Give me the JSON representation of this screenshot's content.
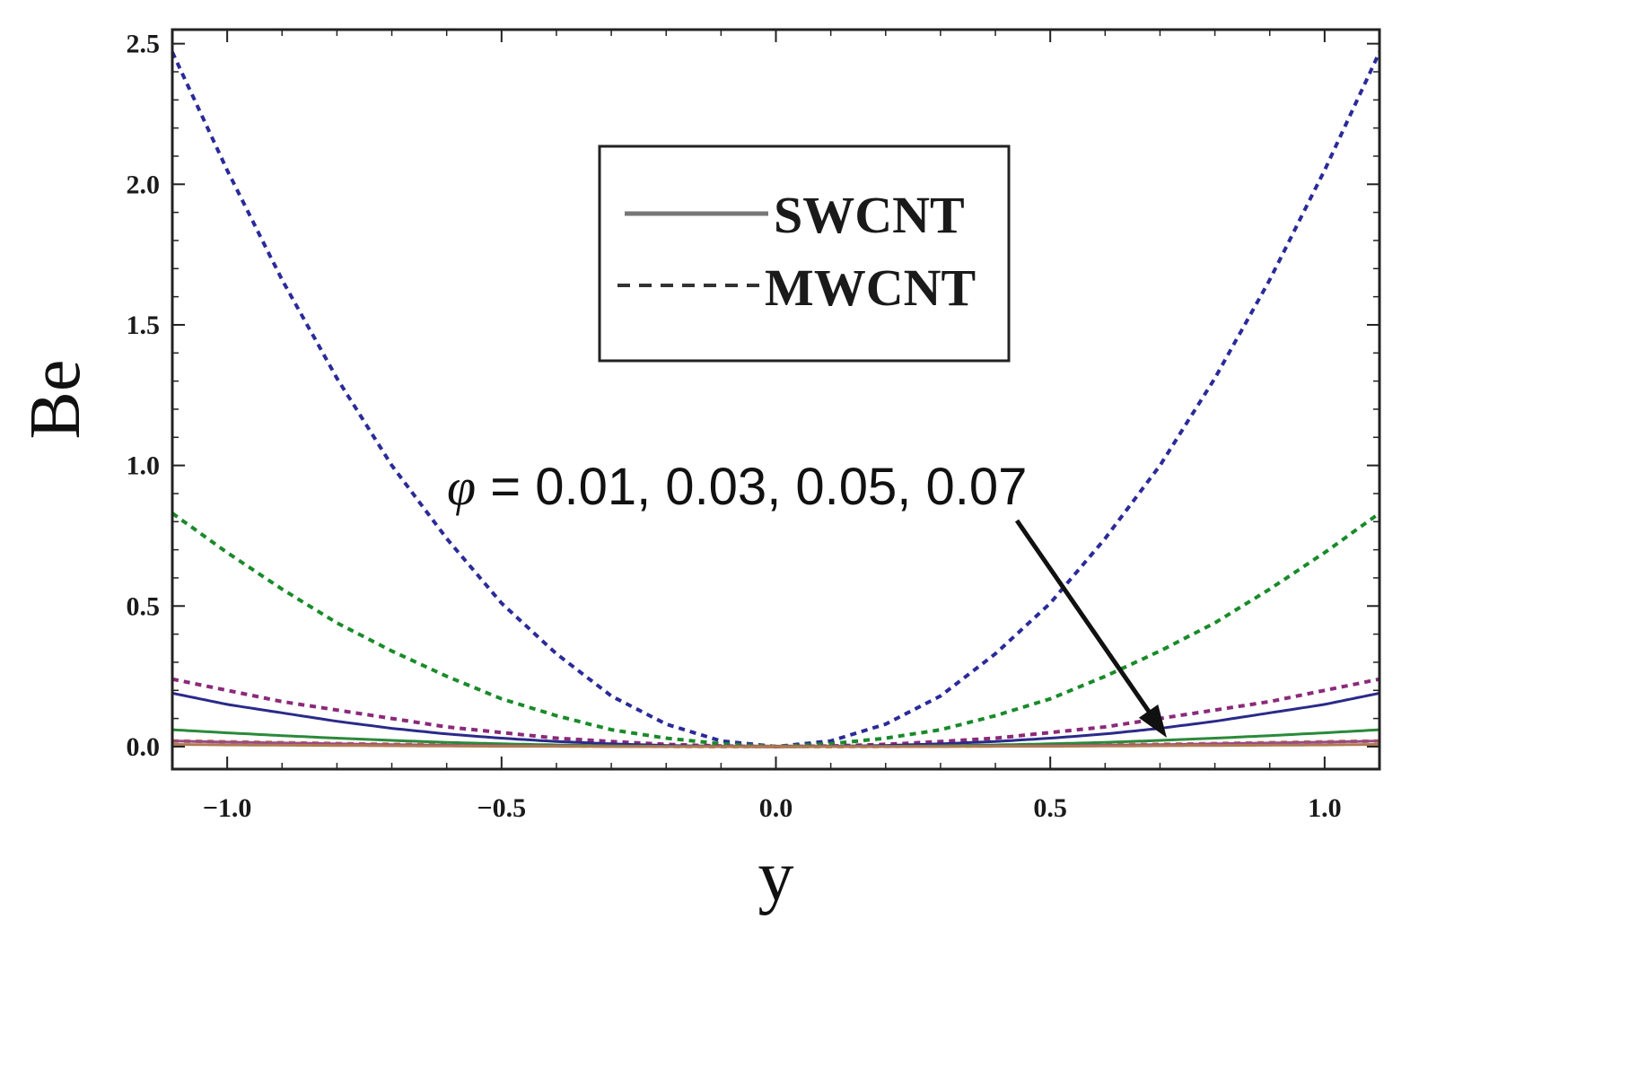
{
  "chart_data": {
    "type": "line",
    "title": "",
    "xlabel": "y",
    "ylabel": "Be",
    "xlim": [
      -1.1,
      1.1
    ],
    "ylim": [
      -0.08,
      2.55
    ],
    "x_ticks": [
      "−1.0",
      "−0.5",
      "0.0",
      "0.5",
      "1.0"
    ],
    "y_ticks": [
      "0.0",
      "0.5",
      "1.0",
      "1.5",
      "2.0",
      "2.5"
    ],
    "grid": false,
    "legend": {
      "position": "top-center",
      "entries": [
        {
          "label": "SWCNT",
          "style": "solid"
        },
        {
          "label": "MWCNT",
          "style": "dashed"
        }
      ]
    },
    "annotation": {
      "symbol": "φ",
      "text": " = 0.01, 0.03, 0.05, 0.07"
    },
    "x": [
      -1.1,
      -1.0,
      -0.9,
      -0.8,
      -0.7,
      -0.6,
      -0.5,
      -0.4,
      -0.3,
      -0.2,
      -0.1,
      0.0,
      0.1,
      0.2,
      0.3,
      0.4,
      0.5,
      0.6,
      0.7,
      0.8,
      0.9,
      1.0,
      1.1
    ],
    "series": [
      {
        "style": "dashed",
        "color": "#2a2a9a",
        "values": [
          2.47,
          2.05,
          1.66,
          1.31,
          1.0,
          0.74,
          0.51,
          0.33,
          0.18,
          0.08,
          0.02,
          0.0,
          0.02,
          0.08,
          0.18,
          0.33,
          0.51,
          0.74,
          1.0,
          1.31,
          1.66,
          2.05,
          2.47
        ]
      },
      {
        "style": "dashed",
        "color": "#1a8a2a",
        "values": [
          0.83,
          0.69,
          0.56,
          0.44,
          0.34,
          0.25,
          0.17,
          0.11,
          0.06,
          0.03,
          0.01,
          0.0,
          0.01,
          0.03,
          0.06,
          0.11,
          0.17,
          0.25,
          0.34,
          0.44,
          0.56,
          0.69,
          0.83
        ]
      },
      {
        "style": "dashed",
        "color": "#8a2a7a",
        "values": [
          0.24,
          0.2,
          0.16,
          0.13,
          0.1,
          0.07,
          0.05,
          0.03,
          0.018,
          0.008,
          0.002,
          0.0,
          0.002,
          0.008,
          0.018,
          0.03,
          0.05,
          0.07,
          0.1,
          0.13,
          0.16,
          0.2,
          0.24
        ]
      },
      {
        "style": "dashed",
        "color": "#c07830",
        "values": [
          0.02,
          0.017,
          0.014,
          0.011,
          0.008,
          0.006,
          0.004,
          0.003,
          0.002,
          0.001,
          0.0,
          0.0,
          0.0,
          0.001,
          0.002,
          0.003,
          0.004,
          0.006,
          0.008,
          0.011,
          0.014,
          0.017,
          0.02
        ]
      },
      {
        "style": "solid",
        "color": "#2a2a8a",
        "values": [
          0.19,
          0.15,
          0.12,
          0.09,
          0.065,
          0.045,
          0.03,
          0.018,
          0.01,
          0.004,
          0.001,
          0.0,
          0.001,
          0.004,
          0.01,
          0.018,
          0.03,
          0.045,
          0.065,
          0.09,
          0.12,
          0.15,
          0.19
        ]
      },
      {
        "style": "solid",
        "color": "#2a8a3a",
        "values": [
          0.06,
          0.049,
          0.039,
          0.03,
          0.022,
          0.015,
          0.01,
          0.006,
          0.003,
          0.001,
          0.0,
          0.0,
          0.0,
          0.001,
          0.003,
          0.006,
          0.01,
          0.015,
          0.022,
          0.03,
          0.039,
          0.049,
          0.06
        ]
      },
      {
        "style": "solid",
        "color": "#9a4a8a",
        "values": [
          0.02,
          0.016,
          0.013,
          0.01,
          0.007,
          0.005,
          0.003,
          0.002,
          0.001,
          0.0,
          0.0,
          0.0,
          0.0,
          0.0,
          0.001,
          0.002,
          0.003,
          0.005,
          0.007,
          0.01,
          0.013,
          0.016,
          0.02
        ]
      },
      {
        "style": "solid",
        "color": "#b07a50",
        "values": [
          0.008,
          0.006,
          0.005,
          0.004,
          0.003,
          0.002,
          0.001,
          0.001,
          0.0,
          0.0,
          0.0,
          0.0,
          0.0,
          0.0,
          0.0,
          0.001,
          0.001,
          0.002,
          0.003,
          0.004,
          0.005,
          0.006,
          0.008
        ]
      }
    ]
  }
}
